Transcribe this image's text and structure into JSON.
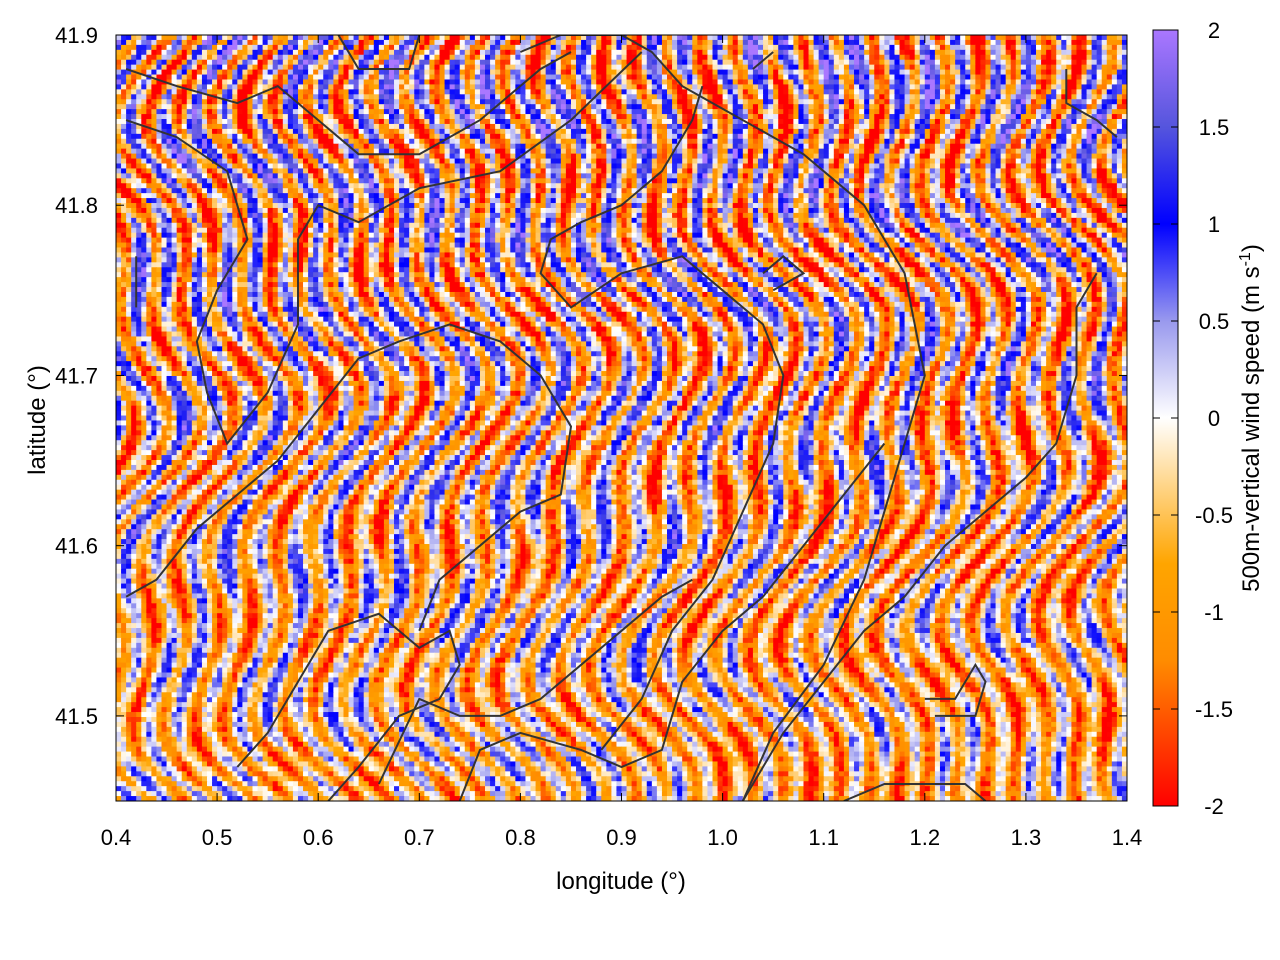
{
  "chart_data": {
    "type": "heatmap",
    "xlabel": "longitude (°)",
    "ylabel": "latitude (°)",
    "colorbar_label": "500m-vertical wind speed (m s",
    "colorbar_label_superscript": "-1",
    "colorbar_label_suffix": ")",
    "xlim": [
      0.4,
      1.4
    ],
    "ylim": [
      41.45,
      41.9
    ],
    "xticks": [
      0.4,
      0.5,
      0.6,
      0.7,
      0.8,
      0.9,
      1.0,
      1.1,
      1.2,
      1.3,
      1.4
    ],
    "xtick_labels": [
      "0.4",
      "0.5",
      "0.6",
      "0.7",
      "0.8",
      "0.9",
      "1.0",
      "1.1",
      "1.2",
      "1.3",
      "1.4"
    ],
    "yticks": [
      41.5,
      41.6,
      41.7,
      41.8,
      41.9
    ],
    "ytick_labels": [
      "41.5",
      "41.6",
      "41.7",
      "41.8",
      "41.9"
    ],
    "colorbar_range": [
      -2,
      2
    ],
    "colorbar_ticks": [
      2,
      1.5,
      1,
      0.5,
      0,
      -0.5,
      -1,
      -1.5,
      -2
    ],
    "colorbar_tick_labels": [
      "2",
      "1.5",
      "1",
      "0.5",
      "0",
      "-0.5",
      "-1",
      "-1.5",
      "-2"
    ],
    "colormap": [
      {
        "value": -2,
        "color": "#ff0000"
      },
      {
        "value": -1.25,
        "color": "#ff8c00"
      },
      {
        "value": -0.75,
        "color": "#ffa500"
      },
      {
        "value": 0,
        "color": "#ffffff"
      },
      {
        "value": 0.5,
        "color": "#9999ee"
      },
      {
        "value": 1,
        "color": "#0000ff"
      },
      {
        "value": 1.5,
        "color": "#5555dd"
      },
      {
        "value": 2,
        "color": "#aa77ff"
      }
    ],
    "grid": false,
    "contour_color": "#333333",
    "field_description": "vertical wind speed at 500 m; values between -2 and 2 m/s, dominated by narrow north-south bands of positive (blue/purple) and negative (orange/red) speed",
    "contours": [
      [
        [
          0.41,
          41.85
        ],
        [
          0.46,
          41.84
        ],
        [
          0.51,
          41.82
        ],
        [
          0.53,
          41.78
        ],
        [
          0.5,
          41.75
        ],
        [
          0.48,
          41.72
        ],
        [
          0.49,
          41.69
        ],
        [
          0.51,
          41.66
        ],
        [
          0.55,
          41.69
        ],
        [
          0.58,
          41.73
        ],
        [
          0.58,
          41.78
        ],
        [
          0.6,
          41.8
        ],
        [
          0.64,
          41.79
        ],
        [
          0.7,
          41.81
        ],
        [
          0.78,
          41.82
        ],
        [
          0.85,
          41.85
        ],
        [
          0.92,
          41.89
        ]
      ],
      [
        [
          0.41,
          41.88
        ],
        [
          0.46,
          41.87
        ],
        [
          0.52,
          41.86
        ],
        [
          0.56,
          41.87
        ],
        [
          0.6,
          41.85
        ],
        [
          0.64,
          41.83
        ],
        [
          0.7,
          41.83
        ],
        [
          0.76,
          41.85
        ],
        [
          0.82,
          41.88
        ],
        [
          0.85,
          41.89
        ]
      ],
      [
        [
          0.62,
          41.9
        ],
        [
          0.64,
          41.88
        ],
        [
          0.69,
          41.88
        ],
        [
          0.7,
          41.9
        ]
      ],
      [
        [
          0.8,
          41.89
        ],
        [
          0.84,
          41.9
        ],
        [
          0.9,
          41.9
        ],
        [
          0.93,
          41.89
        ],
        [
          0.96,
          41.87
        ],
        [
          1.02,
          41.85
        ],
        [
          1.08,
          41.83
        ],
        [
          1.14,
          41.8
        ],
        [
          1.18,
          41.76
        ],
        [
          1.2,
          41.7
        ],
        [
          1.17,
          41.64
        ],
        [
          1.14,
          41.58
        ],
        [
          1.1,
          41.53
        ],
        [
          1.05,
          41.49
        ],
        [
          1.02,
          41.45
        ]
      ],
      [
        [
          0.98,
          41.87
        ],
        [
          0.97,
          41.85
        ],
        [
          0.94,
          41.82
        ],
        [
          0.9,
          41.8
        ],
        [
          0.86,
          41.79
        ],
        [
          0.83,
          41.78
        ],
        [
          0.82,
          41.76
        ],
        [
          0.85,
          41.74
        ],
        [
          0.9,
          41.76
        ],
        [
          0.96,
          41.77
        ],
        [
          1.0,
          41.75
        ],
        [
          1.04,
          41.73
        ],
        [
          1.06,
          41.7
        ],
        [
          1.05,
          41.66
        ],
        [
          1.02,
          41.62
        ],
        [
          0.99,
          41.58
        ],
        [
          0.95,
          41.55
        ],
        [
          0.92,
          41.51
        ],
        [
          0.88,
          41.48
        ]
      ],
      [
        [
          0.41,
          41.57
        ],
        [
          0.44,
          41.58
        ],
        [
          0.48,
          41.61
        ],
        [
          0.52,
          41.63
        ],
        [
          0.56,
          41.65
        ],
        [
          0.6,
          41.68
        ],
        [
          0.64,
          41.71
        ],
        [
          0.68,
          41.72
        ],
        [
          0.73,
          41.73
        ],
        [
          0.78,
          41.72
        ],
        [
          0.82,
          41.7
        ],
        [
          0.85,
          41.67
        ],
        [
          0.84,
          41.63
        ],
        [
          0.8,
          41.62
        ],
        [
          0.76,
          41.6
        ],
        [
          0.72,
          41.58
        ],
        [
          0.7,
          41.55
        ]
      ],
      [
        [
          0.52,
          41.47
        ],
        [
          0.55,
          41.49
        ],
        [
          0.58,
          41.52
        ],
        [
          0.61,
          41.55
        ],
        [
          0.66,
          41.56
        ],
        [
          0.7,
          41.54
        ],
        [
          0.73,
          41.55
        ],
        [
          0.74,
          41.53
        ],
        [
          0.72,
          41.51
        ],
        [
          0.68,
          41.5
        ],
        [
          0.64,
          41.47
        ],
        [
          0.61,
          41.45
        ]
      ],
      [
        [
          0.66,
          41.46
        ],
        [
          0.7,
          41.51
        ],
        [
          0.74,
          41.5
        ],
        [
          0.78,
          41.5
        ],
        [
          0.82,
          41.51
        ],
        [
          0.86,
          41.53
        ],
        [
          0.9,
          41.55
        ],
        [
          0.94,
          41.57
        ],
        [
          0.97,
          41.58
        ]
      ],
      [
        [
          0.74,
          41.45
        ],
        [
          0.76,
          41.48
        ],
        [
          0.8,
          41.49
        ],
        [
          0.86,
          41.48
        ],
        [
          0.9,
          41.47
        ],
        [
          0.94,
          41.48
        ],
        [
          0.96,
          41.52
        ],
        [
          1.0,
          41.55
        ],
        [
          1.04,
          41.57
        ],
        [
          1.08,
          41.6
        ],
        [
          1.12,
          41.63
        ],
        [
          1.16,
          41.66
        ]
      ],
      [
        [
          1.02,
          41.45
        ],
        [
          1.06,
          41.49
        ],
        [
          1.1,
          41.52
        ],
        [
          1.14,
          41.55
        ],
        [
          1.18,
          41.57
        ],
        [
          1.22,
          41.6
        ],
        [
          1.26,
          41.62
        ],
        [
          1.3,
          41.64
        ],
        [
          1.33,
          41.66
        ],
        [
          1.35,
          41.7
        ],
        [
          1.35,
          41.74
        ],
        [
          1.37,
          41.76
        ]
      ],
      [
        [
          1.12,
          41.45
        ],
        [
          1.16,
          41.46
        ],
        [
          1.2,
          41.46
        ],
        [
          1.24,
          41.46
        ],
        [
          1.26,
          41.45
        ]
      ],
      [
        [
          1.2,
          41.51
        ],
        [
          1.23,
          41.51
        ],
        [
          1.25,
          41.53
        ],
        [
          1.26,
          41.52
        ],
        [
          1.25,
          41.5
        ],
        [
          1.21,
          41.5
        ]
      ],
      [
        [
          1.34,
          41.88
        ],
        [
          1.34,
          41.86
        ],
        [
          1.37,
          41.85
        ],
        [
          1.39,
          41.84
        ]
      ],
      [
        [
          1.04,
          41.76
        ],
        [
          1.06,
          41.77
        ],
        [
          1.08,
          41.76
        ],
        [
          1.05,
          41.75
        ]
      ],
      [
        [
          1.03,
          41.88
        ],
        [
          1.05,
          41.89
        ]
      ],
      [
        [
          0.42,
          41.77
        ],
        [
          0.42,
          41.74
        ]
      ]
    ]
  }
}
